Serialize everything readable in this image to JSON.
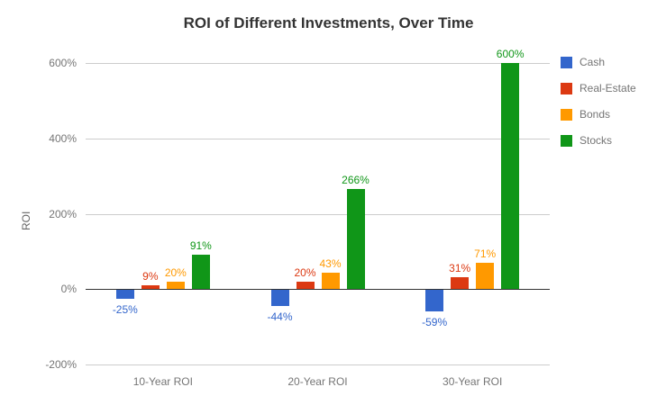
{
  "chart_data": {
    "type": "bar",
    "title": "ROI of Different Investments, Over Time",
    "xlabel": "",
    "ylabel": "ROI",
    "categories": [
      "10-Year ROI",
      "20-Year ROI",
      "30-Year ROI"
    ],
    "series": [
      {
        "name": "Cash",
        "color": "#3366cc",
        "values": [
          -25,
          -44,
          -59
        ]
      },
      {
        "name": "Real-Estate",
        "color": "#dc3912",
        "values": [
          9,
          20,
          31
        ]
      },
      {
        "name": "Bonds",
        "color": "#ff9900",
        "values": [
          20,
          43,
          71
        ]
      },
      {
        "name": "Stocks",
        "color": "#109618",
        "values": [
          91,
          266,
          600
        ]
      }
    ],
    "data_label_format": "{value}%",
    "ylim": [
      -200,
      600
    ],
    "yticks": [
      -200,
      0,
      200,
      400,
      600
    ],
    "ytick_format": "{value}%",
    "grid": true,
    "legend_position": "right",
    "background_color": "#ffffff",
    "title_color": "#333333",
    "tick_label_color": "#757575",
    "gridline_color": "#cccccc",
    "baseline_color": "#333333"
  }
}
